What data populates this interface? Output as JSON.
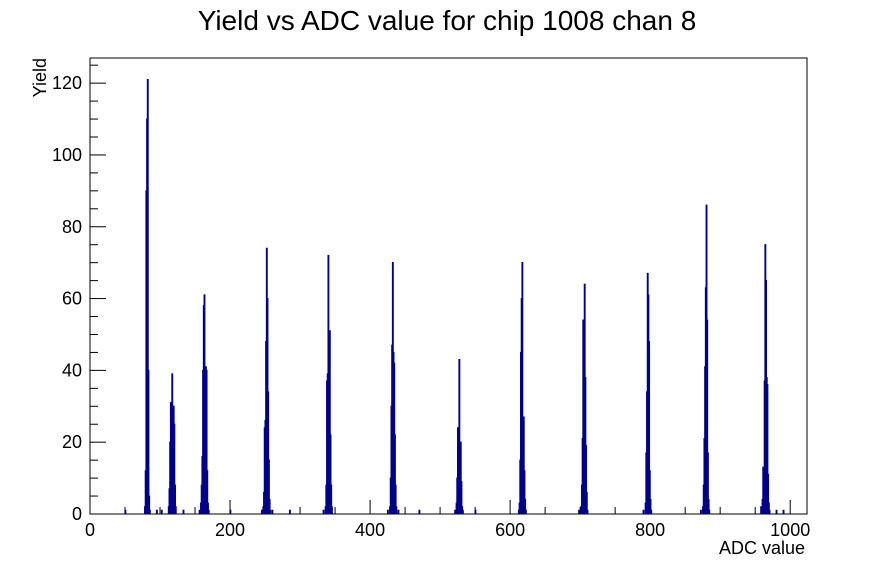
{
  "chart_data": {
    "type": "bar",
    "title": "Yield vs ADC value for chip 1008 chan 8",
    "xlabel": "ADC value",
    "ylabel": "Yield",
    "xlim": [
      0,
      1024
    ],
    "ylim": [
      0,
      127
    ],
    "grid": false,
    "legend": "none",
    "x_ticks": [
      0,
      200,
      400,
      600,
      800,
      1000
    ],
    "y_ticks": [
      0,
      20,
      40,
      60,
      80,
      100,
      120
    ],
    "series": [
      {
        "color": "#000088",
        "bins": [
          [
            50,
            1
          ],
          [
            78,
            2
          ],
          [
            79,
            12
          ],
          [
            80,
            90
          ],
          [
            81,
            110
          ],
          [
            82,
            121
          ],
          [
            83,
            40
          ],
          [
            84,
            5
          ],
          [
            85,
            1
          ],
          [
            95,
            1
          ],
          [
            102,
            1
          ],
          [
            112,
            2
          ],
          [
            113,
            7
          ],
          [
            114,
            20
          ],
          [
            115,
            31
          ],
          [
            116,
            31
          ],
          [
            117,
            39
          ],
          [
            118,
            12
          ],
          [
            119,
            30
          ],
          [
            120,
            25
          ],
          [
            121,
            8
          ],
          [
            122,
            2
          ],
          [
            133,
            1
          ],
          [
            156,
            1
          ],
          [
            158,
            3
          ],
          [
            159,
            8
          ],
          [
            160,
            16
          ],
          [
            161,
            40
          ],
          [
            162,
            58
          ],
          [
            163,
            61
          ],
          [
            164,
            24
          ],
          [
            165,
            41
          ],
          [
            166,
            40
          ],
          [
            167,
            12
          ],
          [
            168,
            3
          ],
          [
            169,
            1
          ],
          [
            200,
            1
          ],
          [
            245,
            1
          ],
          [
            247,
            2
          ],
          [
            248,
            6
          ],
          [
            249,
            24
          ],
          [
            250,
            26
          ],
          [
            251,
            48
          ],
          [
            252,
            74
          ],
          [
            253,
            60
          ],
          [
            254,
            34
          ],
          [
            255,
            15
          ],
          [
            256,
            4
          ],
          [
            257,
            1
          ],
          [
            260,
            1
          ],
          [
            285,
            1
          ],
          [
            333,
            1
          ],
          [
            336,
            2
          ],
          [
            337,
            8
          ],
          [
            338,
            37
          ],
          [
            339,
            39
          ],
          [
            340,
            72
          ],
          [
            341,
            39
          ],
          [
            342,
            51
          ],
          [
            343,
            22
          ],
          [
            344,
            8
          ],
          [
            345,
            2
          ],
          [
            425,
            1
          ],
          [
            428,
            2
          ],
          [
            429,
            10
          ],
          [
            430,
            30
          ],
          [
            431,
            47
          ],
          [
            432,
            70
          ],
          [
            433,
            45
          ],
          [
            434,
            42
          ],
          [
            435,
            22
          ],
          [
            436,
            8
          ],
          [
            437,
            2
          ],
          [
            440,
            1
          ],
          [
            470,
            1
          ],
          [
            521,
            1
          ],
          [
            523,
            3
          ],
          [
            524,
            10
          ],
          [
            525,
            24
          ],
          [
            526,
            11
          ],
          [
            527,
            43
          ],
          [
            528,
            17
          ],
          [
            529,
            20
          ],
          [
            530,
            9
          ],
          [
            531,
            2
          ],
          [
            532,
            1
          ],
          [
            550,
            1
          ],
          [
            612,
            1
          ],
          [
            613,
            3
          ],
          [
            614,
            15
          ],
          [
            615,
            45
          ],
          [
            616,
            60
          ],
          [
            617,
            70
          ],
          [
            618,
            22
          ],
          [
            619,
            27
          ],
          [
            620,
            12
          ],
          [
            621,
            4
          ],
          [
            622,
            1
          ],
          [
            698,
            1
          ],
          [
            701,
            2
          ],
          [
            702,
            8
          ],
          [
            703,
            21
          ],
          [
            704,
            54
          ],
          [
            705,
            53
          ],
          [
            706,
            64
          ],
          [
            707,
            38
          ],
          [
            708,
            19
          ],
          [
            709,
            6
          ],
          [
            710,
            1
          ],
          [
            790,
            1
          ],
          [
            793,
            3
          ],
          [
            794,
            17
          ],
          [
            795,
            34
          ],
          [
            796,
            67
          ],
          [
            797,
            61
          ],
          [
            798,
            48
          ],
          [
            799,
            12
          ],
          [
            800,
            4
          ],
          [
            801,
            1
          ],
          [
            872,
            1
          ],
          [
            875,
            2
          ],
          [
            876,
            8
          ],
          [
            877,
            21
          ],
          [
            878,
            41
          ],
          [
            879,
            63
          ],
          [
            880,
            86
          ],
          [
            881,
            54
          ],
          [
            882,
            17
          ],
          [
            883,
            4
          ],
          [
            884,
            1
          ],
          [
            958,
            2
          ],
          [
            960,
            4
          ],
          [
            961,
            13
          ],
          [
            962,
            13
          ],
          [
            963,
            37
          ],
          [
            964,
            75
          ],
          [
            965,
            65
          ],
          [
            966,
            38
          ],
          [
            967,
            36
          ],
          [
            968,
            11
          ],
          [
            969,
            3
          ],
          [
            970,
            1
          ],
          [
            980,
            1
          ],
          [
            990,
            1
          ]
        ]
      }
    ]
  }
}
